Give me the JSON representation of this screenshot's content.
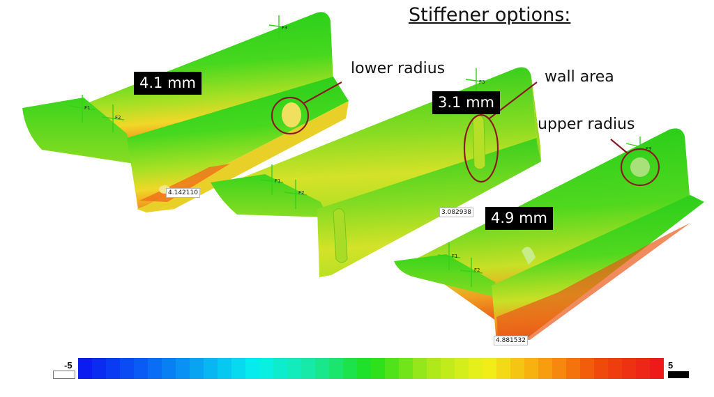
{
  "title": "Stiffener options:",
  "callouts": {
    "lower_radius": "lower radius",
    "wall_area": "wall area",
    "upper_radius": "upper radius"
  },
  "tags": {
    "part1": "4.1 mm",
    "part2": "3.1 mm",
    "part3": "4.9 mm"
  },
  "probes": {
    "part1": "4.142110",
    "part2": "3.082938",
    "part3": "4.881532"
  },
  "fixtures": {
    "f1": "F1",
    "f2": "F2",
    "f3": "F3"
  },
  "color_scale": {
    "min_label": "-5",
    "max_label": "5",
    "min": -5,
    "max": 5,
    "steps": 42,
    "colors": [
      "#0a1cf0",
      "#0a5cf6",
      "#08a8f2",
      "#06f0ee",
      "#18e8a0",
      "#1ee01a",
      "#a8e81a",
      "#f2f21a",
      "#f8a20e",
      "#f04a0c",
      "#ee1a1a"
    ],
    "under_color": "#ffffff",
    "over_color": "#000000"
  },
  "highlight_color": "#8a1a22"
}
